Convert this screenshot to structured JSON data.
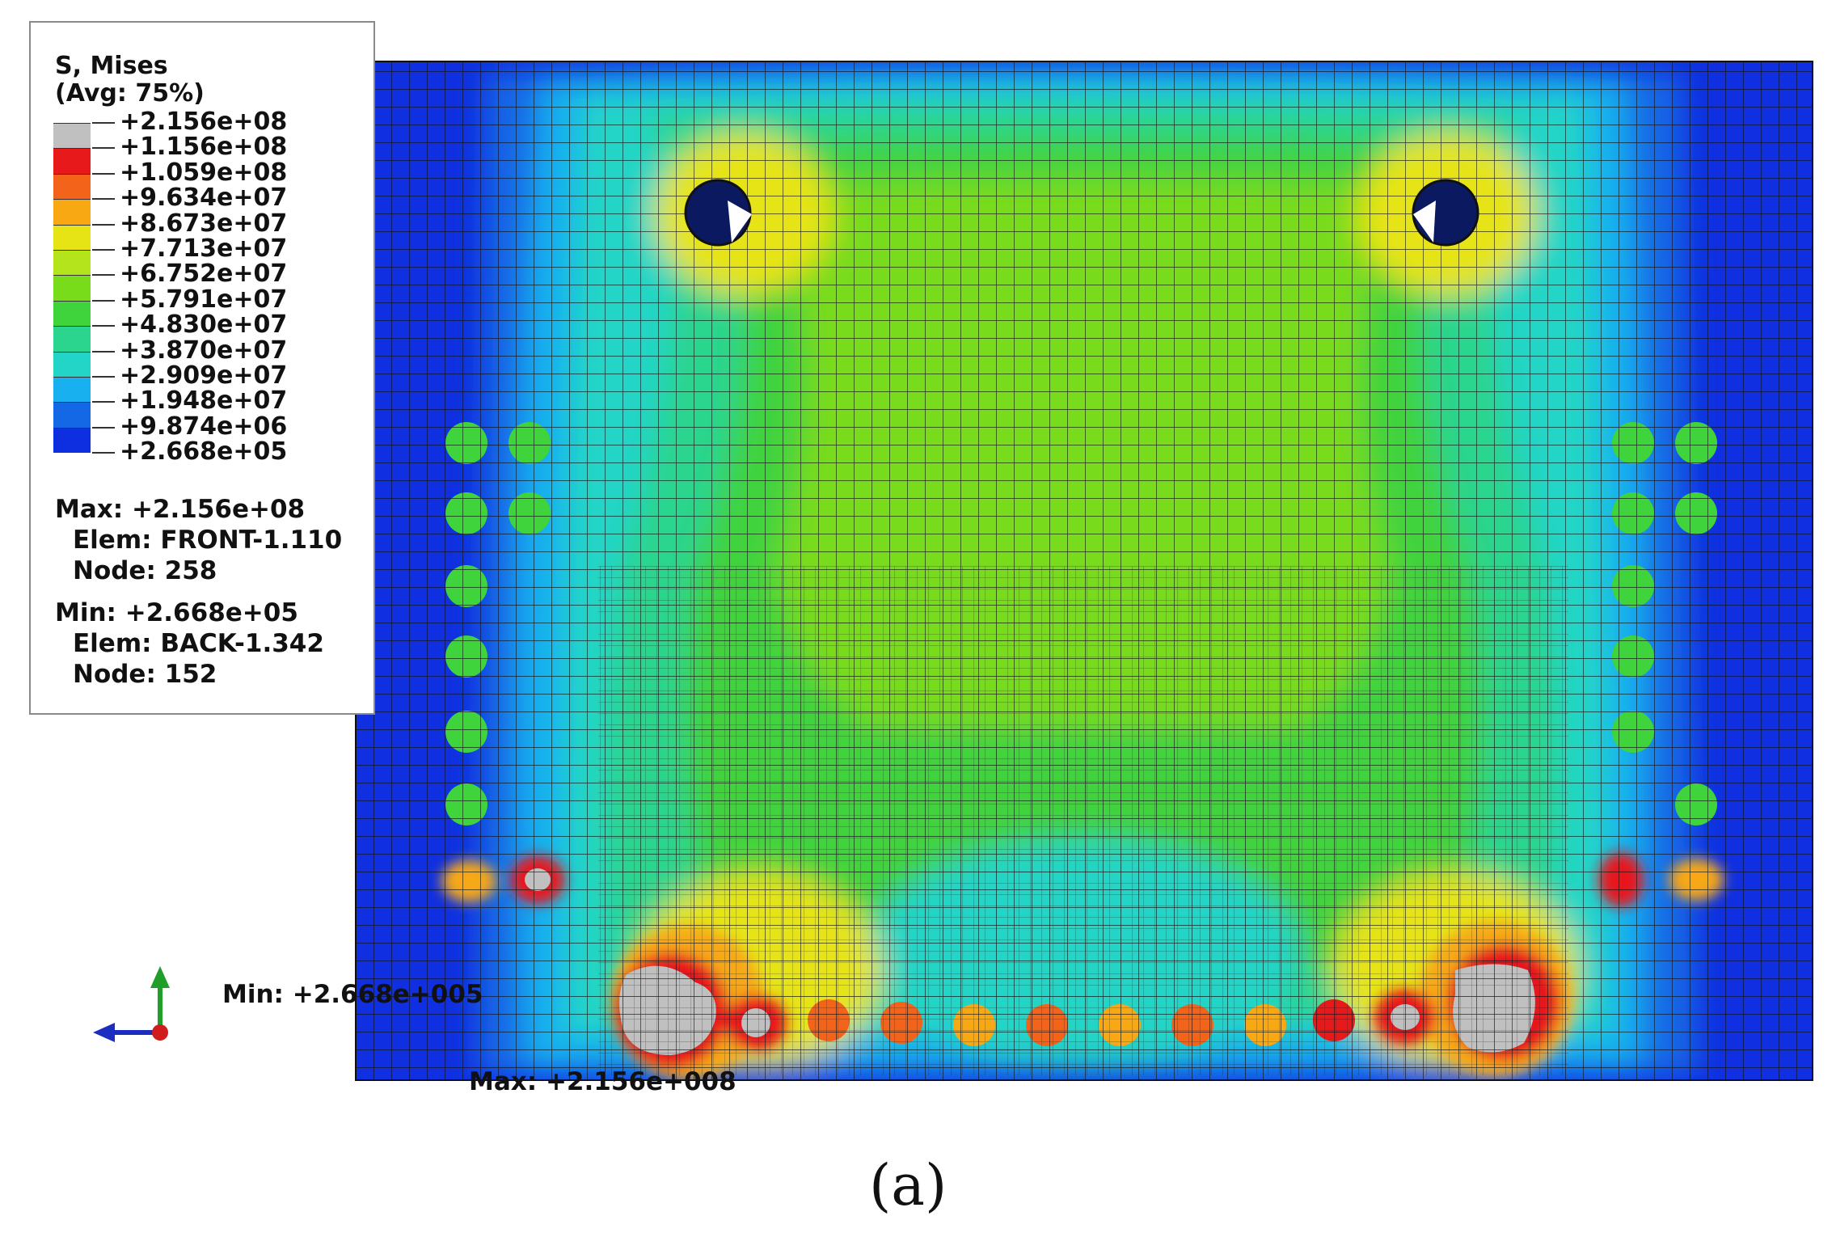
{
  "legend": {
    "title_line1": "S, Mises",
    "title_line2": "(Avg: 75%)",
    "ticks": [
      "+2.156e+08",
      "+1.156e+08",
      "+1.059e+08",
      "+9.634e+07",
      "+8.673e+07",
      "+7.713e+07",
      "+6.752e+07",
      "+5.791e+07",
      "+4.830e+07",
      "+3.870e+07",
      "+2.909e+07",
      "+1.948e+07",
      "+9.874e+06",
      "+2.668e+05"
    ],
    "colors": [
      "#c0c0c0",
      "#e8191b",
      "#f4631a",
      "#f7a813",
      "#e6e414",
      "#b3e41c",
      "#78dc1b",
      "#3fd33c",
      "#2bd58d",
      "#23d5c6",
      "#18b0ef",
      "#1468e6",
      "#0e2fe0"
    ]
  },
  "max_info": {
    "label": "Max: +2.156e+08",
    "elem": "Elem: FRONT-1.110",
    "node": "Node: 258"
  },
  "min_info": {
    "label": "Min: +2.668e+05",
    "elem": "Elem: BACK-1.342",
    "node": "Node: 152"
  },
  "annotations": {
    "min": "Min: +2.668e+005",
    "max": "Max: +2.156e+008"
  },
  "figure_label": "(a)",
  "axis_triad": {
    "colors": {
      "y_axis": "#1f9e2a",
      "x_axis": "#1a2fbf",
      "origin": "#d01c1c"
    }
  }
}
